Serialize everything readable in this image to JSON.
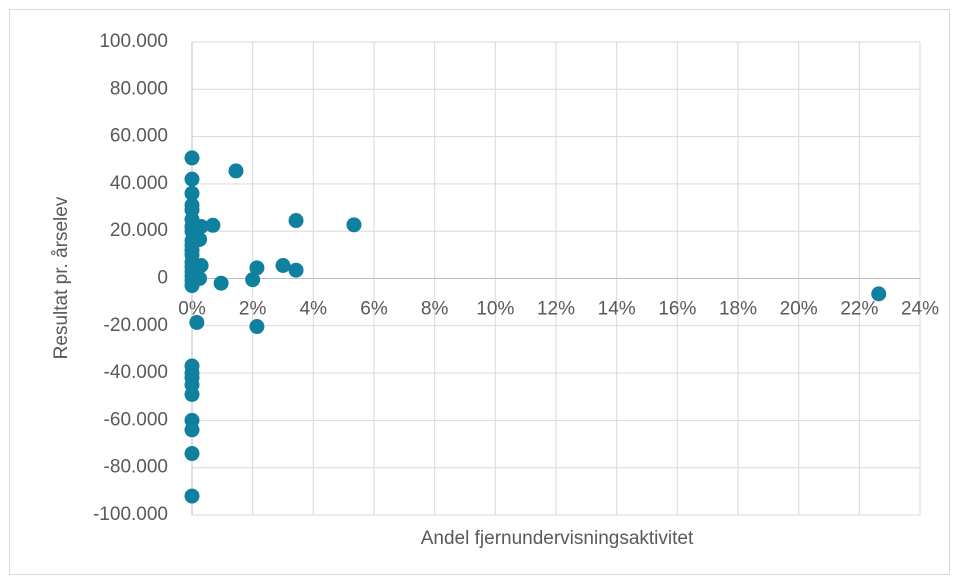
{
  "chart_data": {
    "type": "scatter",
    "x_label": "Andel fjernundervisningsaktivitet",
    "y_label": "Resultat pr. årselev",
    "xlim": [
      0,
      24
    ],
    "xticks": [
      {
        "value": 0,
        "label": "0%"
      },
      {
        "value": 2,
        "label": "2%"
      },
      {
        "value": 4,
        "label": "4%"
      },
      {
        "value": 6,
        "label": "6%"
      },
      {
        "value": 8,
        "label": "8%"
      },
      {
        "value": 10,
        "label": "10%"
      },
      {
        "value": 12,
        "label": "12%"
      },
      {
        "value": 14,
        "label": "14%"
      },
      {
        "value": 16,
        "label": "16%"
      },
      {
        "value": 18,
        "label": "18%"
      },
      {
        "value": 20,
        "label": "20%"
      },
      {
        "value": 22,
        "label": "22%"
      },
      {
        "value": 24,
        "label": "24%"
      }
    ],
    "ylim": [
      -100000,
      100000
    ],
    "yticks": [
      {
        "value": 100000,
        "label": "100.000"
      },
      {
        "value": 80000,
        "label": "80.000"
      },
      {
        "value": 60000,
        "label": "60.000"
      },
      {
        "value": 40000,
        "label": "40.000"
      },
      {
        "value": 20000,
        "label": "20.000"
      },
      0,
      {
        "value": -20000,
        "label": "-20.000"
      },
      {
        "value": -40000,
        "label": "-40.000"
      },
      {
        "value": -60000,
        "label": "-60.000"
      },
      {
        "value": -80000,
        "label": "-80.000"
      },
      {
        "value": -100000,
        "label": "-100.000"
      }
    ],
    "grid": true,
    "series": [
      {
        "color": "#10809f",
        "x": [
          0,
          0,
          0,
          0,
          0,
          0,
          0,
          0,
          0,
          0,
          0,
          0,
          0,
          0,
          0,
          0,
          0,
          0,
          0,
          0,
          0,
          0,
          0,
          0,
          0,
          0,
          0,
          0.16,
          0.3,
          0.25,
          0.3,
          0.25,
          0.69,
          0.96,
          1.45,
          2.0,
          2.14,
          2.14,
          3.0,
          3.43,
          3.43,
          5.34,
          22.64
        ],
        "values": [
          51000,
          42000,
          36000,
          31000,
          29000,
          25000,
          22000,
          20000,
          16000,
          14000,
          12000,
          10000,
          7000,
          5000,
          3000,
          1000,
          -1000,
          -3000,
          -37000,
          -40000,
          -42000,
          -45000,
          -49000,
          -60000,
          -64000,
          -74000,
          -92000,
          -18600,
          22000,
          16500,
          5500,
          0,
          22500,
          -2000,
          45500,
          -500,
          4500,
          -20300,
          5500,
          24500,
          3500,
          22700,
          -6500
        ]
      }
    ]
  }
}
